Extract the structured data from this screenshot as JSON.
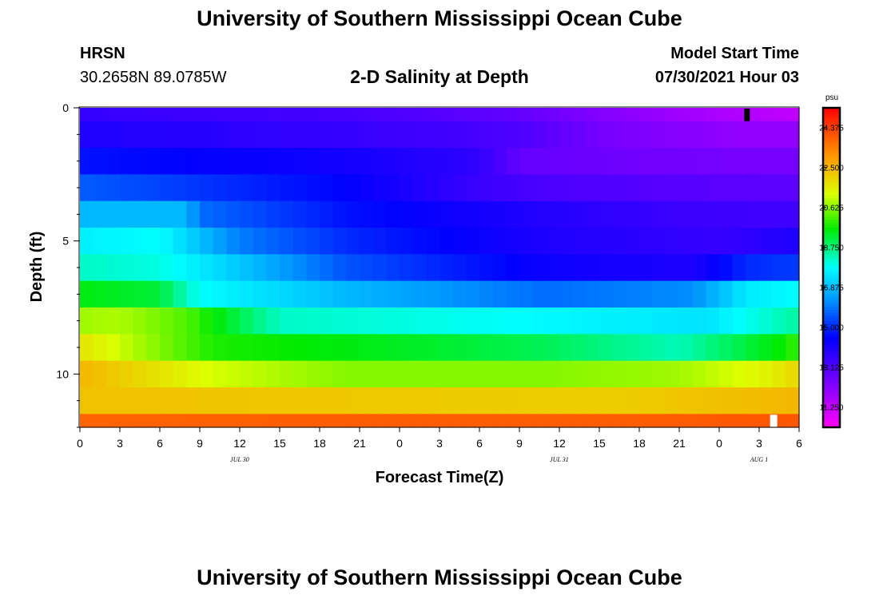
{
  "header": {
    "title": "University of Southern Mississippi Ocean Cube",
    "station": "HRSN",
    "coords": "30.2658N  89.0785W",
    "chart_title": "2-D Salinity at Depth",
    "start_label": "Model Start Time",
    "start_value": "07/30/2021 Hour 03"
  },
  "footer": {
    "title": "University of Southern Mississippi Ocean Cube"
  },
  "colors": {
    "marker_black": "#000000",
    "marker_white": "#ffffff",
    "background": "#ffffff"
  },
  "chart_data": {
    "type": "heatmap",
    "title": "2-D Salinity at Depth",
    "xlabel": "Forecast Time(Z)",
    "ylabel": "Depth (ft)",
    "x_tick_labels": [
      "0",
      "3",
      "6",
      "9",
      "12",
      "15",
      "18",
      "21",
      "0",
      "3",
      "6",
      "9",
      "12",
      "15",
      "18",
      "21",
      "0",
      "3",
      "6"
    ],
    "x_range_hours": [
      0,
      54
    ],
    "x_columns": 54,
    "date_labels": [
      {
        "text": "JUL 30",
        "hour": 12
      },
      {
        "text": "JUL 31",
        "hour": 36
      },
      {
        "text": "AUG 1",
        "hour": 51
      }
    ],
    "y_tick_labels": [
      {
        "text": "0",
        "depth": 0
      },
      {
        "text": "5",
        "depth": 5
      },
      {
        "text": "10",
        "depth": 10
      }
    ],
    "y_range_ft": [
      0,
      12
    ],
    "layer_depth_edges_ft": [
      0,
      0.5,
      1.5,
      2.5,
      3.5,
      4.5,
      5.5,
      6.5,
      7.5,
      8.5,
      9.5,
      10.5,
      11.5,
      12
    ],
    "salinity_keyframes": [
      {
        "hours": [
          0,
          20,
          33,
          40,
          45,
          50,
          54
        ],
        "values": [
          13.6,
          13.3,
          12.8,
          12.2,
          11.8,
          11.5,
          11.25
        ]
      },
      {
        "hours": [
          0,
          20,
          33,
          40,
          45,
          50,
          54
        ],
        "values": [
          14.0,
          13.6,
          13.2,
          12.4,
          12.2,
          12.0,
          12.0
        ]
      },
      {
        "hours": [
          0,
          20,
          30,
          33,
          40,
          48,
          54
        ],
        "values": [
          14.7,
          14.2,
          13.7,
          12.8,
          12.6,
          12.5,
          12.5
        ]
      },
      {
        "hours": [
          0,
          6,
          20,
          30,
          35,
          45,
          54
        ],
        "values": [
          15.6,
          15.3,
          14.5,
          13.5,
          13.2,
          13.0,
          12.9
        ]
      },
      {
        "hours": [
          0,
          8,
          9,
          20,
          35,
          45,
          54
        ],
        "values": [
          16.8,
          16.8,
          15.8,
          14.7,
          13.9,
          13.5,
          13.4
        ]
      },
      {
        "hours": [
          0,
          6,
          12,
          20,
          35,
          48,
          54
        ],
        "values": [
          17.6,
          17.8,
          16.0,
          15.0,
          14.0,
          13.6,
          14.0
        ]
      },
      {
        "hours": [
          0,
          6,
          12,
          20,
          35,
          46,
          50,
          54
        ],
        "values": [
          18.2,
          18.0,
          17.0,
          15.5,
          14.3,
          14.0,
          15.0,
          15.2
        ]
      },
      {
        "hours": [
          0,
          6,
          9,
          20,
          35,
          46,
          50,
          54
        ],
        "values": [
          19.5,
          19.2,
          17.8,
          16.8,
          15.8,
          16.2,
          17.5,
          17.8
        ]
      },
      {
        "hours": [
          0,
          3,
          8,
          15,
          25,
          40,
          47,
          54
        ],
        "values": [
          20.8,
          20.9,
          20.2,
          18.2,
          18.0,
          17.6,
          17.4,
          18.5
        ]
      },
      {
        "hours": [
          0,
          10,
          20,
          35,
          45,
          52,
          54
        ],
        "values": [
          21.7,
          19.8,
          19.5,
          19.0,
          18.3,
          19.5,
          20.0
        ]
      },
      {
        "hours": [
          0,
          10,
          20,
          35,
          45,
          52,
          54
        ],
        "values": [
          22.5,
          21.2,
          20.6,
          20.6,
          20.8,
          21.5,
          22.0
        ]
      },
      {
        "hours": [
          0,
          20,
          40,
          54
        ],
        "values": [
          22.3,
          22.2,
          22.1,
          22.5
        ]
      },
      {
        "hours": [
          0,
          20,
          40,
          54
        ],
        "values": [
          23.8,
          23.9,
          23.9,
          24.0
        ]
      }
    ],
    "colorbar": {
      "unit": "psu",
      "min": 10.3,
      "max": 25.3,
      "tick_labels": [
        "24.375",
        "22.500",
        "20.625",
        "18.750",
        "16.875",
        "15.000",
        "13.125",
        "11.250"
      ],
      "tick_values": [
        24.375,
        22.5,
        20.625,
        18.75,
        16.875,
        15.0,
        13.125,
        11.25
      ]
    },
    "markers": [
      {
        "name": "surface-marker",
        "hour": 50,
        "depth_top": 0,
        "depth_bottom": 0.5,
        "color": "black"
      },
      {
        "name": "bottom-marker",
        "hour": 52,
        "depth_top": 11.5,
        "depth_bottom": 12,
        "color": "white"
      }
    ]
  }
}
